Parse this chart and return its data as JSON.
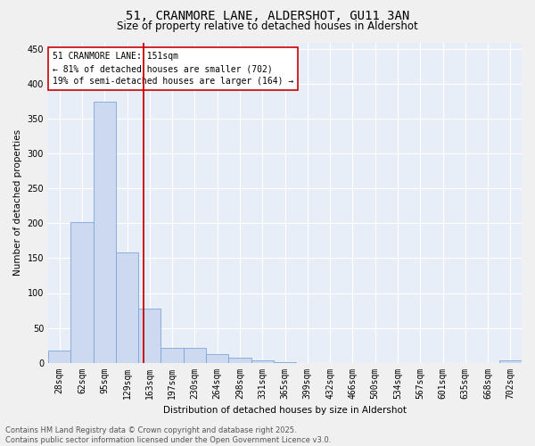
{
  "title": "51, CRANMORE LANE, ALDERSHOT, GU11 3AN",
  "subtitle": "Size of property relative to detached houses in Aldershot",
  "xlabel": "Distribution of detached houses by size in Aldershot",
  "ylabel": "Number of detached properties",
  "bar_labels": [
    "28sqm",
    "62sqm",
    "95sqm",
    "129sqm",
    "163sqm",
    "197sqm",
    "230sqm",
    "264sqm",
    "298sqm",
    "331sqm",
    "365sqm",
    "399sqm",
    "432sqm",
    "466sqm",
    "500sqm",
    "534sqm",
    "567sqm",
    "601sqm",
    "635sqm",
    "668sqm",
    "702sqm"
  ],
  "bar_values": [
    18,
    202,
    375,
    158,
    78,
    21,
    21,
    12,
    7,
    3,
    1,
    0,
    0,
    0,
    0,
    0,
    0,
    0,
    0,
    0,
    3
  ],
  "bar_color": "#ccd9f0",
  "bar_edge_color": "#7aa8d8",
  "vline_x": 3.75,
  "vline_color": "#cc0000",
  "annotation_text": "51 CRANMORE LANE: 151sqm\n← 81% of detached houses are smaller (702)\n19% of semi-detached houses are larger (164) →",
  "annotation_box_color": "#ffffff",
  "annotation_box_edge": "#cc0000",
  "ylim": [
    0,
    460
  ],
  "yticks": [
    0,
    50,
    100,
    150,
    200,
    250,
    300,
    350,
    400,
    450
  ],
  "background_color": "#e8eef8",
  "grid_color": "#ffffff",
  "footer_text": "Contains HM Land Registry data © Crown copyright and database right 2025.\nContains public sector information licensed under the Open Government Licence v3.0.",
  "title_fontsize": 10,
  "subtitle_fontsize": 8.5,
  "axis_label_fontsize": 7.5,
  "tick_fontsize": 7,
  "annotation_fontsize": 7,
  "footer_fontsize": 6
}
